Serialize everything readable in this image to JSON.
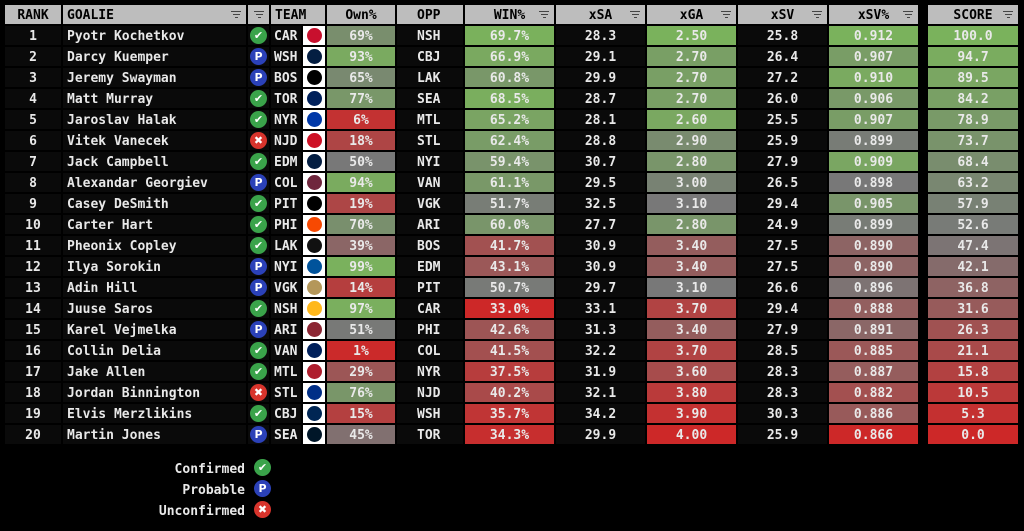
{
  "headers": {
    "rank": "RANK",
    "goalie": "GOALIE",
    "team": "TEAM",
    "own": "Own%",
    "opp": "OPP",
    "win": "WIN%",
    "xsa": "xSA",
    "xga": "xGA",
    "xsv": "xSV",
    "xsvp": "xSV%",
    "score": "SCORE"
  },
  "status_colors": {
    "confirmed": "#3aa34a",
    "probable": "#2b41b8",
    "unconfirmed": "#d8342c"
  },
  "rows": [
    {
      "rank": "1",
      "goalie": "Pyotr Kochetkov",
      "status": "confirmed",
      "team": "CAR",
      "logo_color": "#c8102e",
      "own": "69%",
      "opp": "NSH",
      "win": "69.7%",
      "xsa": "28.3",
      "xga": "2.50",
      "xsv": "25.8",
      "xsvp": "0.912",
      "score": "100.0"
    },
    {
      "rank": "2",
      "goalie": "Darcy Kuemper",
      "status": "probable",
      "team": "WSH",
      "logo_color": "#041e42",
      "own": "93%",
      "opp": "CBJ",
      "win": "66.9%",
      "xsa": "29.1",
      "xga": "2.70",
      "xsv": "26.4",
      "xsvp": "0.907",
      "score": "94.7"
    },
    {
      "rank": "3",
      "goalie": "Jeremy Swayman",
      "status": "probable",
      "team": "BOS",
      "logo_color": "#000000",
      "own": "65%",
      "opp": "LAK",
      "win": "60.8%",
      "xsa": "29.9",
      "xga": "2.70",
      "xsv": "27.2",
      "xsvp": "0.910",
      "score": "89.5"
    },
    {
      "rank": "4",
      "goalie": "Matt Murray",
      "status": "confirmed",
      "team": "TOR",
      "logo_color": "#00205b",
      "own": "77%",
      "opp": "SEA",
      "win": "68.5%",
      "xsa": "28.7",
      "xga": "2.70",
      "xsv": "26.0",
      "xsvp": "0.906",
      "score": "84.2"
    },
    {
      "rank": "5",
      "goalie": "Jaroslav Halak",
      "status": "confirmed",
      "team": "NYR",
      "logo_color": "#0038a8",
      "own": "6%",
      "opp": "MTL",
      "win": "65.2%",
      "xsa": "28.1",
      "xga": "2.60",
      "xsv": "25.5",
      "xsvp": "0.907",
      "score": "78.9"
    },
    {
      "rank": "6",
      "goalie": "Vitek Vanecek",
      "status": "unconfirmed",
      "team": "NJD",
      "logo_color": "#ce1126",
      "own": "18%",
      "opp": "STL",
      "win": "62.4%",
      "xsa": "28.8",
      "xga": "2.90",
      "xsv": "25.9",
      "xsvp": "0.899",
      "score": "73.7"
    },
    {
      "rank": "7",
      "goalie": "Jack Campbell",
      "status": "confirmed",
      "team": "EDM",
      "logo_color": "#041e42",
      "own": "50%",
      "opp": "NYI",
      "win": "59.4%",
      "xsa": "30.7",
      "xga": "2.80",
      "xsv": "27.9",
      "xsvp": "0.909",
      "score": "68.4"
    },
    {
      "rank": "8",
      "goalie": "Alexandar Georgiev",
      "status": "probable",
      "team": "COL",
      "logo_color": "#6f263d",
      "own": "94%",
      "opp": "VAN",
      "win": "61.1%",
      "xsa": "29.5",
      "xga": "3.00",
      "xsv": "26.5",
      "xsvp": "0.898",
      "score": "63.2"
    },
    {
      "rank": "9",
      "goalie": "Casey DeSmith",
      "status": "confirmed",
      "team": "PIT",
      "logo_color": "#000000",
      "own": "19%",
      "opp": "VGK",
      "win": "51.7%",
      "xsa": "32.5",
      "xga": "3.10",
      "xsv": "29.4",
      "xsvp": "0.905",
      "score": "57.9"
    },
    {
      "rank": "10",
      "goalie": "Carter Hart",
      "status": "confirmed",
      "team": "PHI",
      "logo_color": "#f74902",
      "own": "70%",
      "opp": "ARI",
      "win": "60.0%",
      "xsa": "27.7",
      "xga": "2.80",
      "xsv": "24.9",
      "xsvp": "0.899",
      "score": "52.6"
    },
    {
      "rank": "11",
      "goalie": "Pheonix Copley",
      "status": "confirmed",
      "team": "LAK",
      "logo_color": "#111111",
      "own": "39%",
      "opp": "BOS",
      "win": "41.7%",
      "xsa": "30.9",
      "xga": "3.40",
      "xsv": "27.5",
      "xsvp": "0.890",
      "score": "47.4"
    },
    {
      "rank": "12",
      "goalie": "Ilya Sorokin",
      "status": "probable",
      "team": "NYI",
      "logo_color": "#00539b",
      "own": "99%",
      "opp": "EDM",
      "win": "43.1%",
      "xsa": "30.9",
      "xga": "3.40",
      "xsv": "27.5",
      "xsvp": "0.890",
      "score": "42.1"
    },
    {
      "rank": "13",
      "goalie": "Adin Hill",
      "status": "probable",
      "team": "VGK",
      "logo_color": "#b4975a",
      "own": "14%",
      "opp": "PIT",
      "win": "50.7%",
      "xsa": "29.7",
      "xga": "3.10",
      "xsv": "26.6",
      "xsvp": "0.896",
      "score": "36.8"
    },
    {
      "rank": "14",
      "goalie": "Juuse Saros",
      "status": "confirmed",
      "team": "NSH",
      "logo_color": "#ffb81c",
      "own": "97%",
      "opp": "CAR",
      "win": "33.0%",
      "xsa": "33.1",
      "xga": "3.70",
      "xsv": "29.4",
      "xsvp": "0.888",
      "score": "31.6"
    },
    {
      "rank": "15",
      "goalie": "Karel Vejmelka",
      "status": "probable",
      "team": "ARI",
      "logo_color": "#8c2633",
      "own": "51%",
      "opp": "PHI",
      "win": "42.6%",
      "xsa": "31.3",
      "xga": "3.40",
      "xsv": "27.9",
      "xsvp": "0.891",
      "score": "26.3"
    },
    {
      "rank": "16",
      "goalie": "Collin Delia",
      "status": "confirmed",
      "team": "VAN",
      "logo_color": "#00205b",
      "own": "1%",
      "opp": "COL",
      "win": "41.5%",
      "xsa": "32.2",
      "xga": "3.70",
      "xsv": "28.5",
      "xsvp": "0.885",
      "score": "21.1"
    },
    {
      "rank": "17",
      "goalie": "Jake Allen",
      "status": "confirmed",
      "team": "MTL",
      "logo_color": "#af1e2d",
      "own": "29%",
      "opp": "NYR",
      "win": "37.5%",
      "xsa": "31.9",
      "xga": "3.60",
      "xsv": "28.3",
      "xsvp": "0.887",
      "score": "15.8"
    },
    {
      "rank": "18",
      "goalie": "Jordan Binnington",
      "status": "unconfirmed",
      "team": "STL",
      "logo_color": "#002f87",
      "own": "76%",
      "opp": "NJD",
      "win": "40.2%",
      "xsa": "32.1",
      "xga": "3.80",
      "xsv": "28.3",
      "xsvp": "0.882",
      "score": "10.5"
    },
    {
      "rank": "19",
      "goalie": "Elvis Merzlikins",
      "status": "confirmed",
      "team": "CBJ",
      "logo_color": "#002654",
      "own": "15%",
      "opp": "WSH",
      "win": "35.7%",
      "xsa": "34.2",
      "xga": "3.90",
      "xsv": "30.3",
      "xsvp": "0.886",
      "score": "5.3"
    },
    {
      "rank": "20",
      "goalie": "Martin Jones",
      "status": "probable",
      "team": "SEA",
      "logo_color": "#001628",
      "own": "45%",
      "opp": "TOR",
      "win": "34.3%",
      "xsa": "29.9",
      "xga": "4.00",
      "xsv": "25.9",
      "xsvp": "0.866",
      "score": "0.0"
    }
  ],
  "legend": [
    {
      "label": "Confirmed",
      "status": "confirmed"
    },
    {
      "label": "Probable",
      "status": "probable"
    },
    {
      "label": "Unconfirmed",
      "status": "unconfirmed"
    }
  ]
}
